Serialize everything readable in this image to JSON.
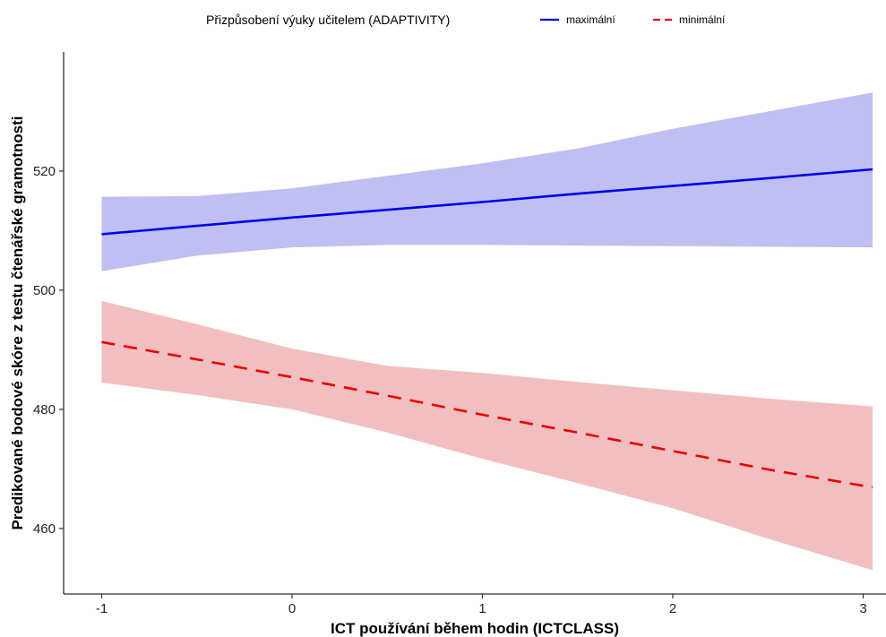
{
  "chart_data": {
    "type": "line",
    "title": "",
    "xlabel": "ICT používání během hodin (ICTCLASS)",
    "ylabel": "Predikované bodové skóre z testu čtenářské gramotnosti",
    "xlim": [
      -1.2,
      3.12
    ],
    "ylim": [
      449,
      540
    ],
    "x_ticks": [
      -1,
      0,
      1,
      2,
      3
    ],
    "x_tick_labels": [
      "-1",
      "0",
      "1",
      "2",
      "3"
    ],
    "y_ticks": [
      460,
      480,
      500,
      520
    ],
    "y_tick_labels": [
      "460",
      "480",
      "500",
      "520"
    ],
    "grid": false,
    "legend": {
      "title": "Přizpůsobení výuky učitelem  (ADAPTIVITY)",
      "placement": "top"
    },
    "series": [
      {
        "name": "maximální",
        "color": "#0000ee",
        "line_style": "solid",
        "ribbon_color": "#bcbcf0",
        "x": [
          -1,
          -0.5,
          0,
          0.5,
          1,
          1.5,
          2,
          2.5,
          3.05
        ],
        "y": [
          509.4,
          510.8,
          512.2,
          513.5,
          514.8,
          516.2,
          517.5,
          518.8,
          520.3
        ],
        "lower": [
          503.2,
          505.8,
          507.2,
          507.6,
          507.6,
          507.5,
          507.4,
          507.3,
          507.2
        ],
        "upper": [
          515.7,
          515.8,
          517.1,
          519.2,
          521.3,
          523.8,
          527.1,
          530.0,
          533.2
        ]
      },
      {
        "name": "minimální",
        "color": "#ee0000",
        "line_style": "dashed",
        "ribbon_color": "#f0bcbd",
        "x": [
          -1,
          -0.5,
          0,
          0.5,
          1,
          1.5,
          2,
          2.5,
          3.05
        ],
        "y": [
          491.3,
          488.4,
          485.4,
          482.3,
          479.1,
          476.1,
          473.0,
          469.9,
          466.9
        ],
        "lower": [
          484.5,
          482.4,
          480.0,
          476.1,
          471.7,
          467.6,
          463.4,
          458.3,
          453.0
        ],
        "upper": [
          498.2,
          494.3,
          490.2,
          487.3,
          486.1,
          484.6,
          483.2,
          481.8,
          480.5
        ]
      }
    ]
  }
}
